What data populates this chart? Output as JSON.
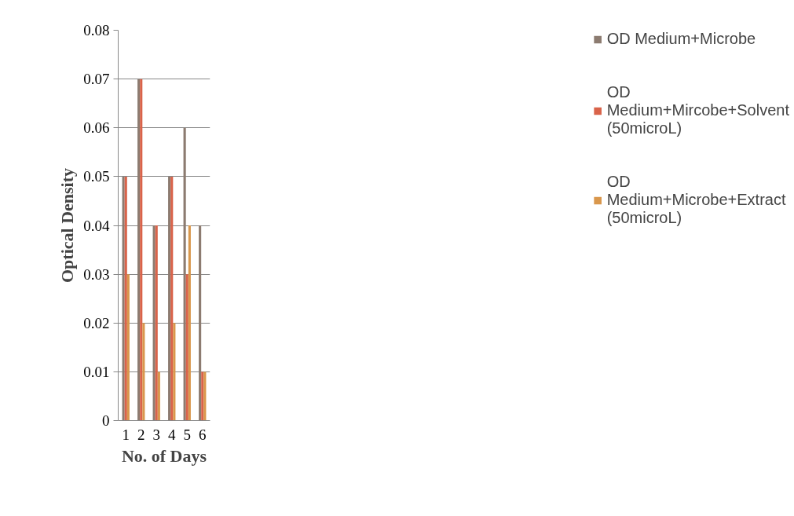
{
  "chart_data": {
    "type": "bar",
    "xlabel": "No. of Days",
    "ylabel": "Optical Density",
    "categories": [
      "1",
      "2",
      "3",
      "4",
      "5",
      "6"
    ],
    "series": [
      {
        "name": "OD Medium+Microbe",
        "color": "#8c7b70",
        "values": [
          0.05,
          0.07,
          0.04,
          0.05,
          0.06,
          0.04
        ]
      },
      {
        "name": "OD Medium+Mircobe+Solvent (50microL)",
        "color": "#d9634a",
        "values": [
          0.05,
          0.07,
          0.04,
          0.05,
          0.03,
          0.01
        ]
      },
      {
        "name": "OD Medium+Microbe+Extract (50microL)",
        "color": "#d9974c",
        "values": [
          0.03,
          0.02,
          0.01,
          0.02,
          0.04,
          0.01
        ]
      }
    ],
    "ylim": [
      0,
      0.08
    ],
    "yticks": [
      {
        "value": 0,
        "label": "0"
      },
      0.01,
      0.02,
      0.03,
      0.04,
      0.05,
      0.06,
      0.07,
      0.08
    ],
    "grid": "y",
    "legend": "right"
  }
}
